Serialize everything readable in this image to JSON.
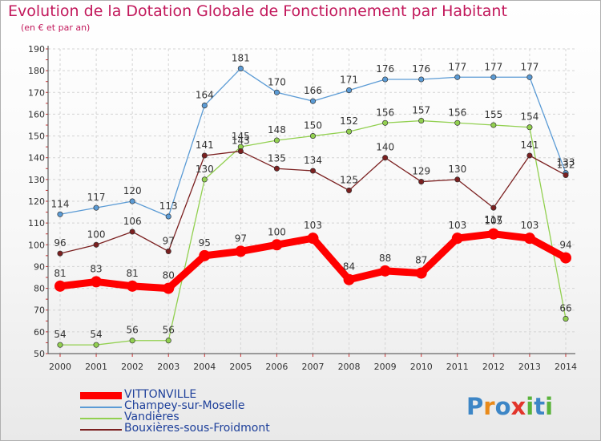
{
  "header": {
    "title": "Evolution de la Dotation Globale de Fonctionnement par Habitant",
    "subtitle": "(en € et par an)"
  },
  "logo": {
    "text": "Proxiti",
    "letters": [
      "P",
      "r",
      "o",
      "x",
      "i",
      "t",
      "i"
    ],
    "colors": [
      "#3d86c6",
      "#e98a1a",
      "#3d86c6",
      "#e2352b",
      "#5ab33b",
      "#3d86c6",
      "#5ab33b"
    ]
  },
  "chart_data": {
    "type": "line",
    "x": [
      "2000",
      "2001",
      "2002",
      "2003",
      "2004",
      "2005",
      "2006",
      "2007",
      "2008",
      "2009",
      "2010",
      "2011",
      "2012",
      "2013",
      "2014"
    ],
    "ylim": [
      50,
      190
    ],
    "yticks": [
      50,
      60,
      70,
      80,
      90,
      100,
      110,
      120,
      130,
      140,
      150,
      160,
      170,
      180,
      190
    ],
    "grid": true,
    "legend_position": "bottom-left",
    "series": [
      {
        "name": "VITTONVILLE",
        "color": "#ff0000",
        "values": [
          81,
          83,
          81,
          80,
          95,
          97,
          100,
          103,
          84,
          88,
          87,
          103,
          105,
          103,
          94
        ]
      },
      {
        "name": "Champey-sur-Moselle",
        "color": "#5b9bd5",
        "values": [
          114,
          117,
          120,
          113,
          164,
          181,
          170,
          166,
          171,
          176,
          176,
          177,
          177,
          177,
          133
        ]
      },
      {
        "name": "Vandières",
        "color": "#92d050",
        "values": [
          54,
          54,
          56,
          56,
          130,
          145,
          148,
          150,
          152,
          156,
          157,
          156,
          155,
          154,
          66
        ]
      },
      {
        "name": "Bouxières-sous-Froidmont",
        "color": "#7b2020",
        "values": [
          96,
          100,
          106,
          97,
          141,
          143,
          135,
          134,
          125,
          140,
          129,
          130,
          117,
          141,
          132
        ]
      }
    ]
  }
}
